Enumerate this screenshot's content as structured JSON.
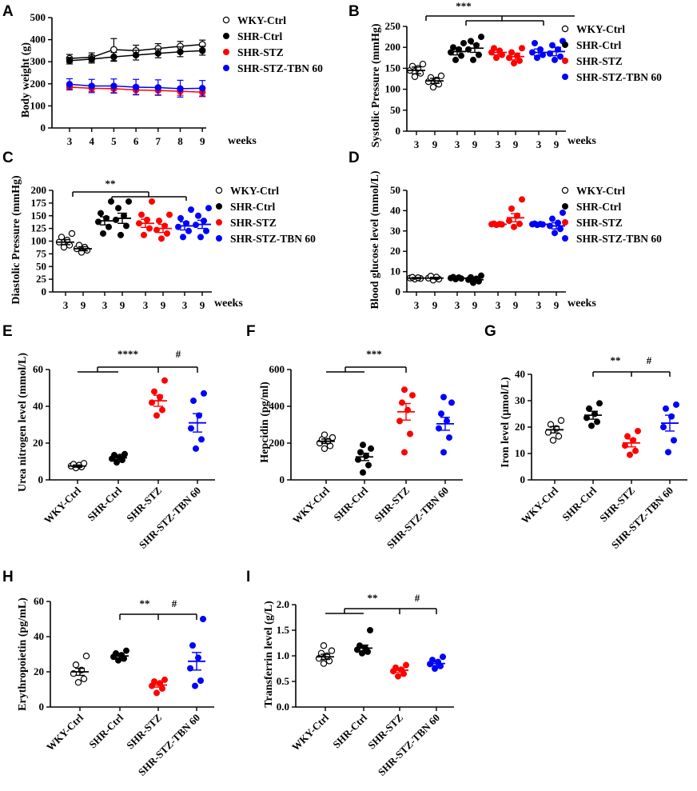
{
  "groups": [
    "WKY-Ctrl",
    "SHR-Ctrl",
    "SHR-STZ",
    "SHR-STZ-TBN 60"
  ],
  "colors": {
    "WKY-Ctrl": "#000000",
    "SHR-Ctrl": "#000000",
    "SHR-STZ": "#ff0000",
    "SHR-STZ-TBN 60": "#0000ff"
  },
  "panels": {
    "A": {
      "label": "A",
      "ylabel": "Body weight (g)",
      "xlabel": "weeks"
    },
    "B": {
      "label": "B",
      "ylabel": "Systolic Pressure (mmHg)",
      "xlabel": "weeks",
      "sig": "***"
    },
    "C": {
      "label": "C",
      "ylabel": "Diastolic Pressure (mmHg)",
      "xlabel": "weeks",
      "sig": "**"
    },
    "D": {
      "label": "D",
      "ylabel": "Blood glucose level (mmol/L)",
      "xlabel": "weeks"
    },
    "E": {
      "label": "E",
      "ylabel": "Urea nitrogen level (mmol/L)",
      "sig1": "****",
      "sig2": "#"
    },
    "F": {
      "label": "F",
      "ylabel": "Hepcidin (pg/ml)",
      "sig1": "***"
    },
    "G": {
      "label": "G",
      "ylabel": "Iron level (μmol/L)",
      "sig1": "**",
      "sig2": "#"
    },
    "H": {
      "label": "H",
      "ylabel": "Erythropoietin (pg/mL)",
      "sig1": "**",
      "sig2": "#"
    },
    "I": {
      "label": "I",
      "ylabel": "Transferrin level (g/L)",
      "sig1": "**",
      "sig2": "#"
    }
  },
  "chart_data": [
    {
      "id": "A",
      "type": "line",
      "title": "",
      "xlabel": "weeks",
      "ylabel": "Body weight (g)",
      "x": [
        3,
        4,
        5,
        6,
        7,
        8,
        9
      ],
      "ylim": [
        0,
        500
      ],
      "yticks": [
        0,
        100,
        200,
        300,
        400,
        500
      ],
      "series": [
        {
          "name": "WKY-Ctrl",
          "marker": "open",
          "values": [
            315,
            320,
            355,
            350,
            360,
            370,
            378
          ],
          "err": [
            18,
            20,
            50,
            25,
            22,
            22,
            20
          ]
        },
        {
          "name": "SHR-Ctrl",
          "marker": "filled",
          "values": [
            305,
            312,
            322,
            330,
            338,
            345,
            350
          ],
          "err": [
            15,
            18,
            20,
            22,
            20,
            22,
            20
          ]
        },
        {
          "name": "SHR-STZ",
          "marker": "filled",
          "values": [
            185,
            180,
            178,
            172,
            170,
            166,
            162
          ],
          "err": [
            12,
            15,
            18,
            20,
            20,
            18,
            20
          ]
        },
        {
          "name": "SHR-STZ-TBN 60",
          "marker": "filled",
          "values": [
            198,
            190,
            190,
            185,
            183,
            178,
            180
          ],
          "err": [
            25,
            30,
            32,
            35,
            35,
            38,
            35
          ]
        }
      ]
    },
    {
      "id": "B",
      "type": "scatter",
      "title": "",
      "xlabel": "weeks",
      "ylabel": "Systolic Pressure (mmHg)",
      "ylim": [
        0,
        250
      ],
      "yticks": [
        0,
        50,
        100,
        150,
        200,
        250
      ],
      "xticklabels": [
        "3",
        "9",
        "3",
        "9",
        "3",
        "9",
        "3",
        "9"
      ],
      "columns": [
        {
          "group": "WKY-Ctrl",
          "week": "3",
          "mean": 145,
          "sem": 8,
          "points": [
            130,
            138,
            145,
            150,
            155,
            160
          ]
        },
        {
          "group": "WKY-Ctrl",
          "week": "9",
          "mean": 120,
          "sem": 6,
          "points": [
            105,
            112,
            118,
            122,
            128,
            132
          ]
        },
        {
          "group": "SHR-Ctrl",
          "week": "3",
          "mean": 190,
          "sem": 8,
          "points": [
            170,
            180,
            188,
            195,
            200,
            210
          ]
        },
        {
          "group": "SHR-Ctrl",
          "week": "9",
          "mean": 198,
          "sem": 10,
          "points": [
            170,
            182,
            195,
            205,
            215,
            225
          ]
        },
        {
          "group": "SHR-STZ",
          "week": "3",
          "mean": 188,
          "sem": 6,
          "points": [
            175,
            182,
            188,
            192,
            198
          ]
        },
        {
          "group": "SHR-STZ",
          "week": "9",
          "mean": 178,
          "sem": 8,
          "points": [
            162,
            168,
            175,
            180,
            188,
            198
          ]
        },
        {
          "group": "SHR-STZ-TBN 60",
          "week": "3",
          "mean": 188,
          "sem": 8,
          "points": [
            175,
            182,
            188,
            195,
            210
          ]
        },
        {
          "group": "SHR-STZ-TBN 60",
          "week": "9",
          "mean": 190,
          "sem": 10,
          "points": [
            170,
            178,
            185,
            195,
            205,
            215
          ]
        }
      ]
    },
    {
      "id": "C",
      "type": "scatter",
      "title": "",
      "xlabel": "weeks",
      "ylabel": "Diastolic Pressure (mmHg)",
      "ylim": [
        0,
        200
      ],
      "yticks": [
        0,
        25,
        50,
        75,
        100,
        125,
        150,
        175,
        200
      ],
      "xticklabels": [
        "3",
        "9",
        "3",
        "9",
        "3",
        "9",
        "3",
        "9"
      ],
      "columns": [
        {
          "group": "WKY-Ctrl",
          "week": "3",
          "mean": 98,
          "sem": 5,
          "points": [
            88,
            92,
            98,
            102,
            108,
            115
          ]
        },
        {
          "group": "WKY-Ctrl",
          "week": "9",
          "mean": 85,
          "sem": 4,
          "points": [
            78,
            82,
            85,
            88,
            92
          ]
        },
        {
          "group": "SHR-Ctrl",
          "week": "3",
          "mean": 140,
          "sem": 8,
          "points": [
            115,
            128,
            138,
            145,
            155,
            178
          ]
        },
        {
          "group": "SHR-Ctrl",
          "week": "9",
          "mean": 145,
          "sem": 10,
          "points": [
            112,
            130,
            142,
            150,
            165,
            178
          ]
        },
        {
          "group": "SHR-STZ",
          "week": "3",
          "mean": 135,
          "sem": 8,
          "points": [
            112,
            125,
            135,
            142,
            152,
            178
          ]
        },
        {
          "group": "SHR-STZ",
          "week": "9",
          "mean": 125,
          "sem": 8,
          "points": [
            105,
            115,
            122,
            130,
            140,
            152
          ]
        },
        {
          "group": "SHR-STZ-TBN 60",
          "week": "3",
          "mean": 130,
          "sem": 8,
          "points": [
            108,
            120,
            128,
            135,
            145,
            162
          ]
        },
        {
          "group": "SHR-STZ-TBN 60",
          "week": "9",
          "mean": 133,
          "sem": 8,
          "points": [
            108,
            120,
            132,
            140,
            150,
            165
          ]
        }
      ]
    },
    {
      "id": "D",
      "type": "scatter",
      "title": "",
      "xlabel": "weeks",
      "ylabel": "Blood glucose level (mmol/L)",
      "ylim": [
        0,
        50
      ],
      "yticks": [
        0,
        10,
        20,
        30,
        40,
        50
      ],
      "xticklabels": [
        "3",
        "9",
        "3",
        "9",
        "3",
        "9",
        "3",
        "9"
      ],
      "columns": [
        {
          "group": "WKY-Ctrl",
          "week": "3",
          "mean": 6.8,
          "sem": 0.3,
          "points": [
            6.3,
            6.6,
            6.8,
            7.0,
            7.2
          ]
        },
        {
          "group": "WKY-Ctrl",
          "week": "9",
          "mean": 6.8,
          "sem": 0.4,
          "points": [
            5.8,
            6.3,
            6.8,
            7.3,
            7.8
          ]
        },
        {
          "group": "SHR-Ctrl",
          "week": "3",
          "mean": 6.8,
          "sem": 0.3,
          "points": [
            6.3,
            6.6,
            6.8,
            7.1,
            7.3
          ]
        },
        {
          "group": "SHR-Ctrl",
          "week": "9",
          "mean": 6.0,
          "sem": 0.6,
          "points": [
            4.5,
            5.2,
            6.0,
            6.5,
            7.2,
            8.0
          ]
        },
        {
          "group": "SHR-STZ",
          "week": "3",
          "mean": 33.3,
          "sem": 0.3,
          "points": [
            33.0,
            33.2,
            33.3,
            33.4,
            33.6
          ]
        },
        {
          "group": "SHR-STZ",
          "week": "9",
          "mean": 36.5,
          "sem": 2.0,
          "points": [
            32.0,
            33.5,
            35.0,
            37.5,
            41.0,
            45.5
          ]
        },
        {
          "group": "SHR-STZ-TBN 60",
          "week": "3",
          "mean": 33.3,
          "sem": 0.3,
          "points": [
            33.0,
            33.2,
            33.3,
            33.4,
            33.6
          ]
        },
        {
          "group": "SHR-STZ-TBN 60",
          "week": "9",
          "mean": 32.5,
          "sem": 1.5,
          "points": [
            29.0,
            31.0,
            32.5,
            34.0,
            36.0,
            39.0
          ]
        }
      ]
    },
    {
      "id": "E",
      "type": "scatter",
      "ylabel": "Urea nitrogen level (mmol/L)",
      "ylim": [
        0,
        60
      ],
      "yticks": [
        0,
        20,
        40,
        60
      ],
      "columns": [
        {
          "group": "WKY-Ctrl",
          "mean": 7.5,
          "sem": 0.6,
          "points": [
            6.5,
            7.0,
            7.5,
            8.0,
            8.5,
            9.0
          ]
        },
        {
          "group": "SHR-Ctrl",
          "mean": 12,
          "sem": 0.8,
          "points": [
            9.5,
            10.8,
            11.5,
            12.5,
            13.5,
            14.0
          ]
        },
        {
          "group": "SHR-STZ",
          "mean": 43,
          "sem": 3,
          "points": [
            35,
            38,
            42,
            45,
            48,
            54
          ]
        },
        {
          "group": "SHR-STZ-TBN 60",
          "mean": 31,
          "sem": 5,
          "points": [
            17,
            22,
            28,
            35,
            43,
            47
          ]
        }
      ]
    },
    {
      "id": "F",
      "type": "scatter",
      "ylabel": "Hepcidin (pg/ml)",
      "ylim": [
        0,
        600
      ],
      "yticks": [
        0,
        200,
        400,
        600
      ],
      "columns": [
        {
          "group": "WKY-Ctrl",
          "mean": 210,
          "sem": 12,
          "points": [
            170,
            185,
            200,
            210,
            220,
            230,
            245
          ]
        },
        {
          "group": "SHR-Ctrl",
          "mean": 125,
          "sem": 20,
          "points": [
            40,
            80,
            110,
            130,
            150,
            170,
            190
          ]
        },
        {
          "group": "SHR-STZ",
          "mean": 370,
          "sem": 45,
          "points": [
            150,
            250,
            320,
            380,
            420,
            460,
            490
          ]
        },
        {
          "group": "SHR-STZ-TBN 60",
          "mean": 305,
          "sem": 35,
          "points": [
            150,
            230,
            280,
            320,
            360,
            420,
            450
          ]
        }
      ]
    },
    {
      "id": "G",
      "type": "scatter",
      "ylabel": "Iron level (μmol/L)",
      "ylim": [
        0,
        40
      ],
      "yticks": [
        0,
        10,
        20,
        30,
        40
      ],
      "columns": [
        {
          "group": "WKY-Ctrl",
          "mean": 19,
          "sem": 1.2,
          "points": [
            15,
            16.5,
            18,
            19.5,
            21,
            22.5
          ]
        },
        {
          "group": "SHR-Ctrl",
          "mean": 24.5,
          "sem": 1.5,
          "points": [
            20.5,
            22,
            23.5,
            25,
            27,
            29
          ]
        },
        {
          "group": "SHR-STZ",
          "mean": 14,
          "sem": 1.5,
          "points": [
            9.5,
            11,
            13,
            15,
            16.5,
            18.5
          ]
        },
        {
          "group": "SHR-STZ-TBN 60",
          "mean": 21.5,
          "sem": 3,
          "points": [
            10.5,
            15,
            20,
            24,
            27,
            28.5
          ]
        }
      ]
    },
    {
      "id": "H",
      "type": "scatter",
      "ylabel": "Erythropoietin (pg/mL)",
      "ylim": [
        0,
        60
      ],
      "yticks": [
        0,
        20,
        40,
        60
      ],
      "columns": [
        {
          "group": "WKY-Ctrl",
          "mean": 20,
          "sem": 2,
          "points": [
            14,
            16,
            19,
            21,
            24,
            29
          ]
        },
        {
          "group": "SHR-Ctrl",
          "mean": 29,
          "sem": 1,
          "points": [
            26.5,
            27.5,
            28.5,
            29.5,
            30.5,
            32
          ]
        },
        {
          "group": "SHR-STZ",
          "mean": 12.5,
          "sem": 1.2,
          "points": [
            8,
            10.5,
            12,
            13.5,
            14.5,
            15.5
          ]
        },
        {
          "group": "SHR-STZ-TBN 60",
          "mean": 26,
          "sem": 5,
          "points": [
            12,
            15,
            22,
            28,
            35,
            50
          ]
        }
      ]
    },
    {
      "id": "I",
      "type": "scatter",
      "ylabel": "Transferrin level (g/L)",
      "ylim": [
        0,
        2.0
      ],
      "yticks": [
        0.0,
        0.5,
        1.0,
        1.5,
        2.0
      ],
      "columns": [
        {
          "group": "WKY-Ctrl",
          "mean": 0.98,
          "sem": 0.05,
          "points": [
            0.85,
            0.9,
            0.95,
            1.0,
            1.05,
            1.1,
            1.2
          ]
        },
        {
          "group": "SHR-Ctrl",
          "mean": 1.15,
          "sem": 0.06,
          "points": [
            1.05,
            1.08,
            1.12,
            1.15,
            1.2,
            1.5
          ]
        },
        {
          "group": "SHR-STZ",
          "mean": 0.72,
          "sem": 0.04,
          "points": [
            0.6,
            0.65,
            0.7,
            0.73,
            0.77,
            0.82
          ]
        },
        {
          "group": "SHR-STZ-TBN 60",
          "mean": 0.85,
          "sem": 0.04,
          "points": [
            0.75,
            0.8,
            0.84,
            0.88,
            0.92,
            0.98
          ]
        }
      ]
    }
  ]
}
